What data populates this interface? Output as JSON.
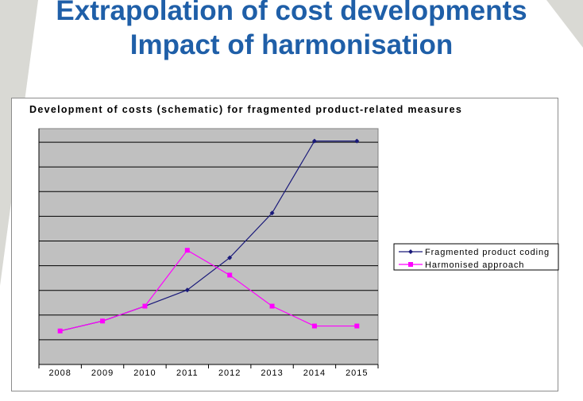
{
  "slide": {
    "title_line_1": "Extrapolation of cost developments",
    "title_line_2": "Impact of harmonisation"
  },
  "colors": {
    "title": "#1f5fa8",
    "plot_background": "#c0c0c0",
    "gridline": "#000000",
    "fragmented_series": "#1a1a7a",
    "harmonised_series": "#ff00ff",
    "background_wedge": "#d9d9d4"
  },
  "chart_data": {
    "type": "line",
    "title": "Development of costs (schematic) for fragmented product-related measures",
    "categories": [
      "2008",
      "2009",
      "2010",
      "2011",
      "2012",
      "2013",
      "2014",
      "2015"
    ],
    "series": [
      {
        "name": "Fragmented product coding",
        "marker": "diamond",
        "values": [
          1.35,
          1.75,
          2.35,
          3.0,
          4.3,
          6.1,
          9.0,
          9.0
        ]
      },
      {
        "name": "Harmonised approach",
        "marker": "square",
        "values": [
          1.35,
          1.75,
          2.35,
          4.6,
          3.6,
          2.35,
          1.55,
          1.55
        ]
      }
    ],
    "ylim": [
      0,
      9.5
    ],
    "y_tick_labels_shown": false,
    "grid": "horizontal",
    "legend_position": "right",
    "xlabel": "",
    "ylabel": ""
  }
}
